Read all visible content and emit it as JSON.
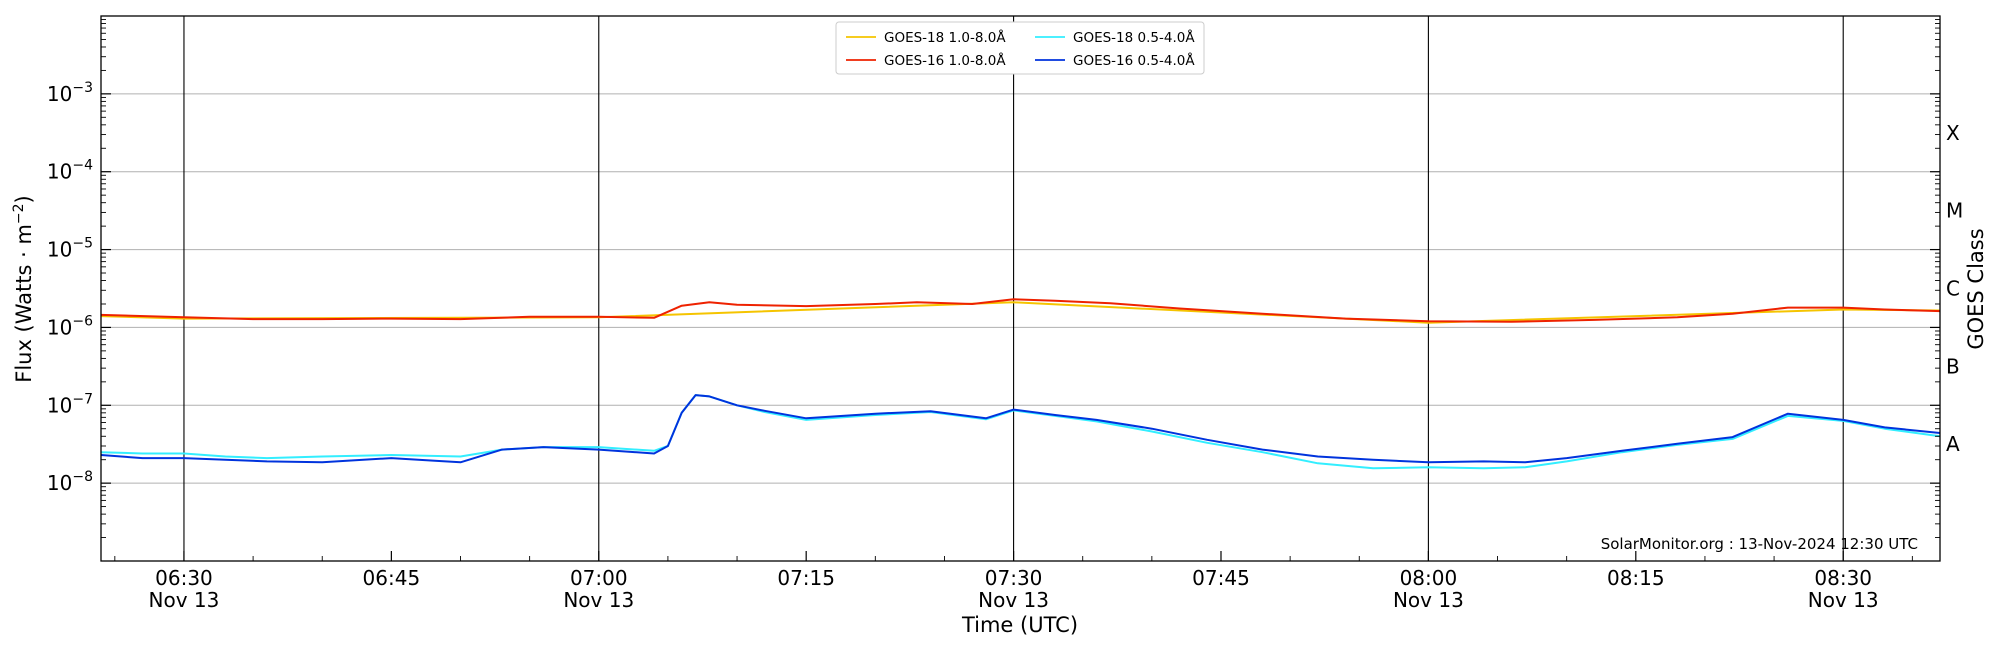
{
  "chart_data": {
    "type": "line",
    "xlabel": "Time (UTC)",
    "ylabel_prefix": "Flux (Watts · m",
    "ylabel_exp": "−2",
    "ylabel_suffix": ")",
    "right_axis_label": "GOES Class",
    "y_scale": "log",
    "ylim": [
      1e-09,
      0.01
    ],
    "xlim": [
      "06:24",
      "08:37"
    ],
    "x_ticks": [
      {
        "time": "06:30",
        "label": "06:30",
        "sublabel": "Nov 13"
      },
      {
        "time": "06:45",
        "label": "06:45",
        "sublabel": ""
      },
      {
        "time": "07:00",
        "label": "07:00",
        "sublabel": "Nov 13"
      },
      {
        "time": "07:15",
        "label": "07:15",
        "sublabel": ""
      },
      {
        "time": "07:30",
        "label": "07:30",
        "sublabel": "Nov 13"
      },
      {
        "time": "07:45",
        "label": "07:45",
        "sublabel": ""
      },
      {
        "time": "08:00",
        "label": "08:00",
        "sublabel": "Nov 13"
      },
      {
        "time": "08:15",
        "label": "08:15",
        "sublabel": ""
      },
      {
        "time": "08:30",
        "label": "08:30",
        "sublabel": "Nov 13"
      }
    ],
    "vertical_lines": [
      "06:30",
      "07:00",
      "07:30",
      "08:00",
      "08:30"
    ],
    "y_ticks": [
      {
        "value": 1e-08,
        "base": "10",
        "exp": "−8"
      },
      {
        "value": 1e-07,
        "base": "10",
        "exp": "−7"
      },
      {
        "value": 1e-06,
        "base": "10",
        "exp": "−6"
      },
      {
        "value": 1e-05,
        "base": "10",
        "exp": "−5"
      },
      {
        "value": 0.0001,
        "base": "10",
        "exp": "−4"
      },
      {
        "value": 0.001,
        "base": "10",
        "exp": "−3"
      }
    ],
    "class_labels": [
      {
        "value": 3.16e-08,
        "label": "A"
      },
      {
        "value": 3.16e-07,
        "label": "B"
      },
      {
        "value": 3.16e-06,
        "label": "C"
      },
      {
        "value": 3.16e-05,
        "label": "M"
      },
      {
        "value": 0.000316,
        "label": "X"
      }
    ],
    "grid": "horizontal",
    "legend_position": "top-center",
    "annotation": "SolarMonitor.org : 13-Nov-2024 12:30 UTC",
    "series": [
      {
        "name": "GOES-18 1.0-8.0Å",
        "color": "#f5c400",
        "times": [
          "06:24",
          "06:30",
          "07:00",
          "07:30",
          "08:00",
          "08:30",
          "08:37"
        ],
        "values": [
          1.4e-06,
          1.3e-06,
          1.35e-06,
          2.1e-06,
          1.15e-06,
          1.7e-06,
          1.65e-06
        ]
      },
      {
        "name": "GOES-16 1.0-8.0Å",
        "color": "#ee2200",
        "times": [
          "06:24",
          "06:30",
          "06:35",
          "06:40",
          "06:45",
          "06:50",
          "06:55",
          "07:00",
          "07:04",
          "07:06",
          "07:08",
          "07:10",
          "07:15",
          "07:20",
          "07:23",
          "07:27",
          "07:30",
          "07:33",
          "07:37",
          "07:42",
          "07:48",
          "07:54",
          "08:00",
          "08:06",
          "08:12",
          "08:18",
          "08:22",
          "08:26",
          "08:30",
          "08:33",
          "08:37"
        ],
        "values": [
          1.45e-06,
          1.35e-06,
          1.28e-06,
          1.28e-06,
          1.3e-06,
          1.28e-06,
          1.37e-06,
          1.37e-06,
          1.33e-06,
          1.9e-06,
          2.1e-06,
          1.95e-06,
          1.88e-06,
          2e-06,
          2.1e-06,
          2e-06,
          2.3e-06,
          2.2e-06,
          2.05e-06,
          1.75e-06,
          1.5e-06,
          1.3e-06,
          1.2e-06,
          1.18e-06,
          1.25e-06,
          1.35e-06,
          1.5e-06,
          1.8e-06,
          1.8e-06,
          1.7e-06,
          1.62e-06
        ]
      },
      {
        "name": "GOES-18 0.5-4.0Å",
        "color": "#33eeff",
        "times": [
          "06:24",
          "06:27",
          "06:30",
          "06:33",
          "06:36",
          "06:40",
          "06:45",
          "06:50",
          "06:53",
          "06:56",
          "07:00",
          "07:04",
          "07:05",
          "07:06",
          "07:07",
          "07:08",
          "07:10",
          "07:12",
          "07:15",
          "07:20",
          "07:24",
          "07:28",
          "07:30",
          "07:33",
          "07:36",
          "07:40",
          "07:44",
          "07:48",
          "07:52",
          "07:56",
          "08:00",
          "08:04",
          "08:07",
          "08:10",
          "08:14",
          "08:18",
          "08:22",
          "08:26",
          "08:30",
          "08:33",
          "08:37"
        ],
        "values": [
          2.5e-08,
          2.4e-08,
          2.4e-08,
          2.2e-08,
          2.1e-08,
          2.2e-08,
          2.3e-08,
          2.2e-08,
          2.7e-08,
          2.9e-08,
          2.9e-08,
          2.6e-08,
          3e-08,
          8e-08,
          1.35e-07,
          1.3e-07,
          1e-07,
          8.2e-08,
          6.5e-08,
          7.5e-08,
          8.2e-08,
          6.6e-08,
          8.6e-08,
          7.3e-08,
          6.2e-08,
          4.6e-08,
          3.3e-08,
          2.5e-08,
          1.8e-08,
          1.55e-08,
          1.6e-08,
          1.55e-08,
          1.6e-08,
          1.9e-08,
          2.5e-08,
          3.1e-08,
          3.7e-08,
          7.3e-08,
          6.3e-08,
          5e-08,
          4e-08
        ]
      },
      {
        "name": "GOES-16 0.5-4.0Å",
        "color": "#0033dd",
        "times": [
          "06:24",
          "06:27",
          "06:30",
          "06:33",
          "06:36",
          "06:40",
          "06:45",
          "06:48",
          "06:50",
          "06:53",
          "06:56",
          "07:00",
          "07:04",
          "07:05",
          "07:06",
          "07:07",
          "07:08",
          "07:10",
          "07:12",
          "07:15",
          "07:20",
          "07:24",
          "07:28",
          "07:30",
          "07:33",
          "07:36",
          "07:40",
          "07:44",
          "07:48",
          "07:52",
          "07:56",
          "08:00",
          "08:04",
          "08:07",
          "08:10",
          "08:14",
          "08:18",
          "08:22",
          "08:26",
          "08:30",
          "08:33",
          "08:37"
        ],
        "values": [
          2.3e-08,
          2.1e-08,
          2.1e-08,
          2e-08,
          1.9e-08,
          1.85e-08,
          2.1e-08,
          1.95e-08,
          1.85e-08,
          2.7e-08,
          2.9e-08,
          2.7e-08,
          2.4e-08,
          3e-08,
          8e-08,
          1.35e-07,
          1.3e-07,
          1e-07,
          8.5e-08,
          6.8e-08,
          7.8e-08,
          8.4e-08,
          6.8e-08,
          8.8e-08,
          7.5e-08,
          6.5e-08,
          5e-08,
          3.6e-08,
          2.7e-08,
          2.2e-08,
          2e-08,
          1.85e-08,
          1.9e-08,
          1.85e-08,
          2.1e-08,
          2.6e-08,
          3.2e-08,
          3.9e-08,
          7.8e-08,
          6.5e-08,
          5.2e-08,
          4.4e-08
        ]
      }
    ]
  }
}
